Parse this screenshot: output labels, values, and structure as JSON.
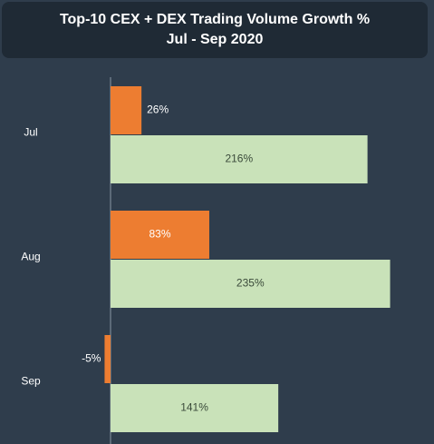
{
  "chart_data": {
    "type": "bar",
    "orientation": "horizontal",
    "title": "Top-10 CEX + DEX Trading Volume Growth %",
    "subtitle": "Jul - Sep 2020",
    "categories": [
      "Jul",
      "Aug",
      "Sep"
    ],
    "series": [
      {
        "values": [
          26,
          83,
          -5
        ],
        "labels": [
          "26%",
          "83%",
          "-5%"
        ],
        "color": "#ed7d31"
      },
      {
        "values": [
          216,
          235,
          141
        ],
        "labels": [
          "216%",
          "235%",
          "141%"
        ],
        "color": "#c9e2b9"
      }
    ],
    "xlim": [
      -5,
      243
    ],
    "grid": false,
    "legend": "none"
  }
}
